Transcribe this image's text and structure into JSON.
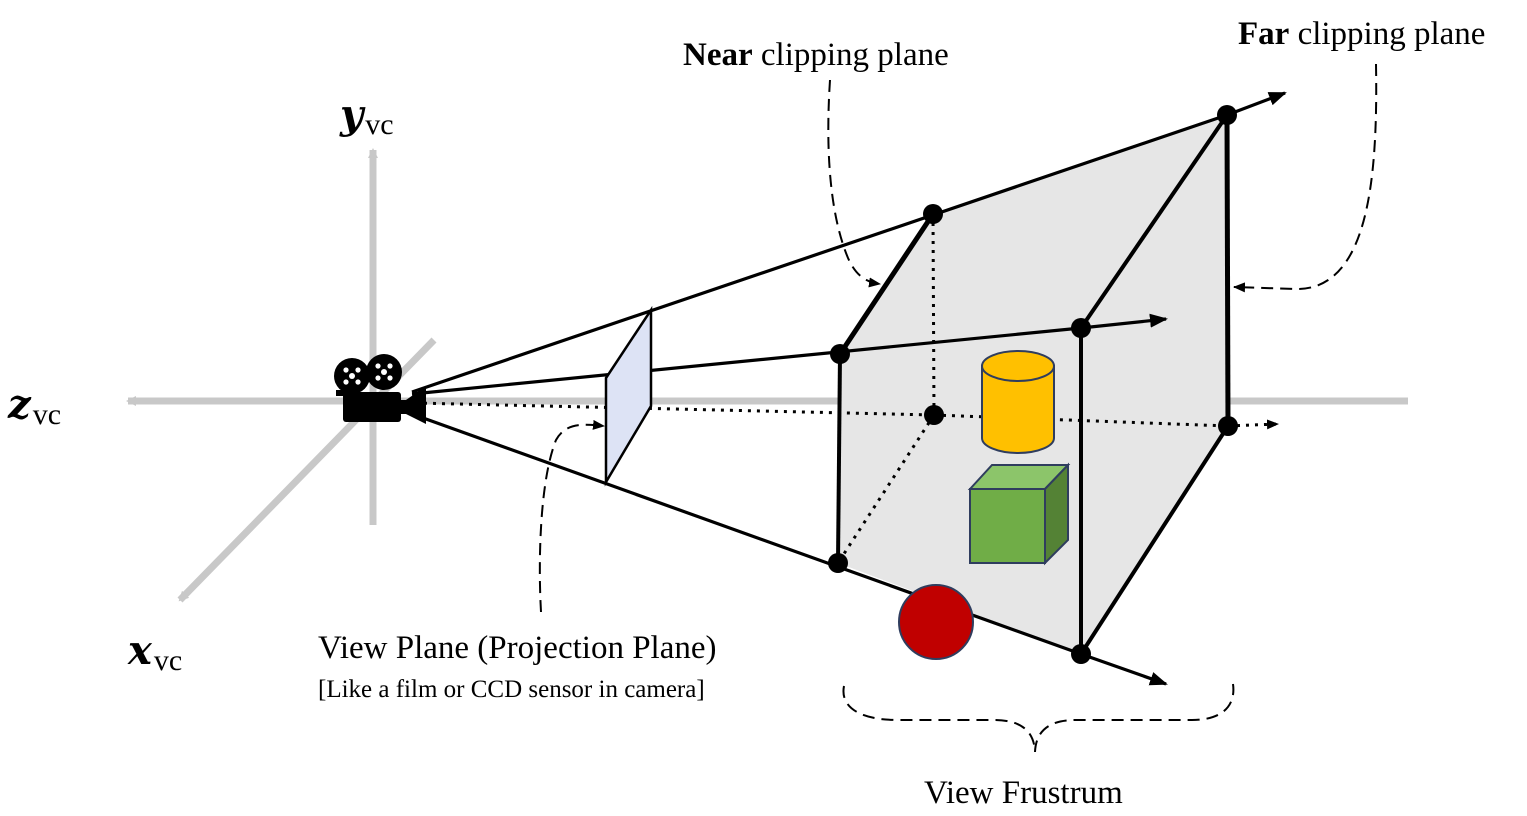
{
  "axes": {
    "y": {
      "main": "y",
      "sub": "vc"
    },
    "z": {
      "main": "z",
      "sub": "vc"
    },
    "x": {
      "main": "x",
      "sub": "vc"
    }
  },
  "labels": {
    "near_bold": "Near",
    "near_rest": " clipping plane",
    "far_bold": "Far",
    "far_rest": " clipping plane",
    "view_plane": "View Plane (Projection Plane)",
    "view_plane_note": "[Like a film or CCD sensor in camera]",
    "view_frustum": "View Frustrum"
  },
  "colors": {
    "axis": "#c8c8c8",
    "frustum_fill": "#e6e6e6",
    "view_plane_fill": "#dde3f5",
    "cylinder": "#ffc000",
    "cube_front": "#70ad47",
    "cube_top": "#8cc56a",
    "cube_side": "#548235",
    "sphere": "#c00000"
  },
  "icons": {
    "camera": "movie-camera-icon"
  }
}
